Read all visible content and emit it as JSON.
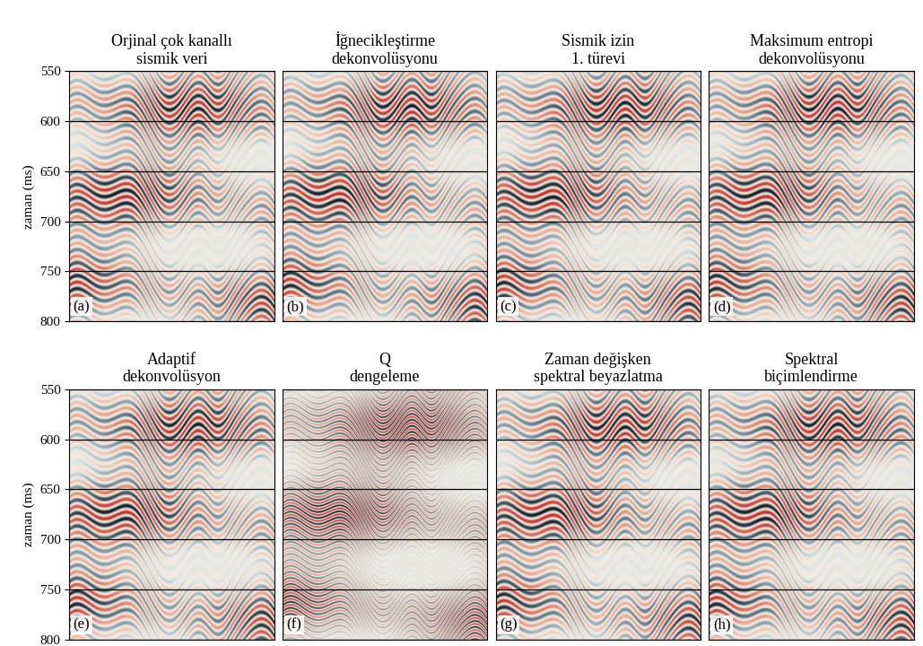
{
  "chart_data": [
    {
      "type": "image",
      "title": "Orjinal çok kanallı\nsismik veri",
      "annotation": "(a)",
      "ylabel": "zaman (ms)",
      "ylim": [
        800,
        550
      ],
      "yticks": [
        550,
        600,
        650,
        700,
        750,
        800
      ],
      "grid": "y",
      "tick_labels": "y"
    },
    {
      "type": "image",
      "title": "İğnecikleştirme\ndekonvolüsyonu",
      "annotation": "(b)",
      "ylim": [
        800,
        550
      ],
      "yticks": [
        550,
        600,
        650,
        700,
        750,
        800
      ],
      "grid": "y",
      "tick_labels": false
    },
    {
      "type": "image",
      "title": "Sismik izin\n1. türevi",
      "annotation": "(c)",
      "ylim": [
        800,
        550
      ],
      "yticks": [
        550,
        600,
        650,
        700,
        750,
        800
      ],
      "grid": "y",
      "tick_labels": false
    },
    {
      "type": "image",
      "title": "Maksimum entropi\ndekonvolüsyonu",
      "annotation": "(d)",
      "ylim": [
        800,
        550
      ],
      "yticks": [
        550,
        600,
        650,
        700,
        750,
        800
      ],
      "grid": "y",
      "tick_labels": false
    },
    {
      "type": "image",
      "title": "Adaptif\ndekonvolüsyon",
      "annotation": "(e)",
      "ylabel": "zaman (ms)",
      "ylim": [
        800,
        550
      ],
      "yticks": [
        550,
        600,
        650,
        700,
        750,
        800
      ],
      "grid": "y",
      "tick_labels": "y"
    },
    {
      "type": "image",
      "title": "Q\ndengeleme",
      "annotation": "(f)",
      "ylim": [
        800,
        550
      ],
      "yticks": [
        550,
        600,
        650,
        700,
        750,
        800
      ],
      "grid": "y",
      "tick_labels": false
    },
    {
      "type": "image",
      "title": "Zaman değişken\nspektral beyazlatma",
      "annotation": "(g)",
      "ylim": [
        800,
        550
      ],
      "yticks": [
        550,
        600,
        650,
        700,
        750,
        800
      ],
      "grid": "y",
      "tick_labels": false
    },
    {
      "type": "image",
      "title": "Spektral\nbiçimlendirme",
      "annotation": "(h)",
      "ylim": [
        800,
        550
      ],
      "yticks": [
        550,
        600,
        650,
        700,
        750,
        800
      ],
      "grid": "y",
      "tick_labels": false
    }
  ]
}
